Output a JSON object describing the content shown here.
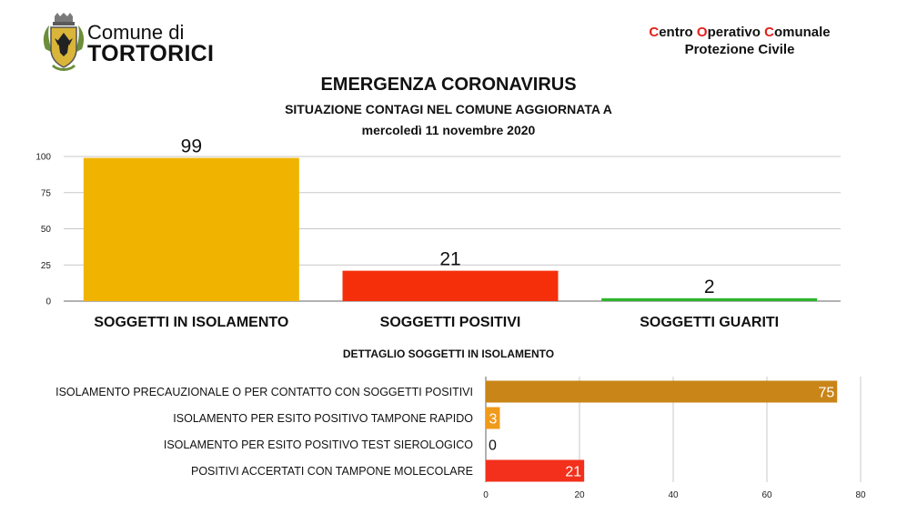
{
  "header": {
    "municipality_line1": "Comune di",
    "municipality_line2": "TORTORICI",
    "coc_word1_initial": "C",
    "coc_word1_rest": "entro ",
    "coc_word2_initial": "O",
    "coc_word2_rest": "perativo ",
    "coc_word3_initial": "C",
    "coc_word3_rest": "omunale",
    "coc_line2": "Protezione Civile"
  },
  "title": "EMERGENZA CORONAVIRUS",
  "subtitle": "SITUAZIONE CONTAGI NEL COMUNE AGGIORNATA A",
  "date": "mercoledì 11 novembre 2020",
  "detail_title": "DETTAGLIO SOGGETTI IN ISOLAMENTO",
  "colors": {
    "isolation": "#f0b400",
    "positive": "#f52f0a",
    "recovered": "#2db52d",
    "precautionary": "#c98518",
    "rapid": "#f09a1c",
    "molecular": "#f2301c",
    "accent_red": "#e0201a"
  },
  "chart_data": [
    {
      "type": "bar",
      "categories": [
        "SOGGETTI IN ISOLAMENTO",
        "SOGGETTI POSITIVI",
        "SOGGETTI GUARITI"
      ],
      "values": [
        99,
        21,
        2
      ],
      "ylim": [
        0,
        100
      ],
      "yticks": [
        0,
        25,
        50,
        75,
        100
      ],
      "grid": true
    },
    {
      "type": "bar",
      "orientation": "horizontal",
      "categories": [
        "ISOLAMENTO PRECAUZIONALE O PER CONTATTO CON SOGGETTI POSITIVI",
        "ISOLAMENTO PER ESITO POSITIVO TAMPONE RAPIDO",
        "ISOLAMENTO PER ESITO POSITIVO TEST SIEROLOGICO",
        "POSITIVI ACCERTATI CON TAMPONE MOLECOLARE"
      ],
      "values": [
        75,
        3,
        0,
        21
      ],
      "xlim": [
        0,
        80
      ],
      "xticks": [
        0,
        20,
        40,
        60,
        80
      ],
      "grid": true
    }
  ]
}
